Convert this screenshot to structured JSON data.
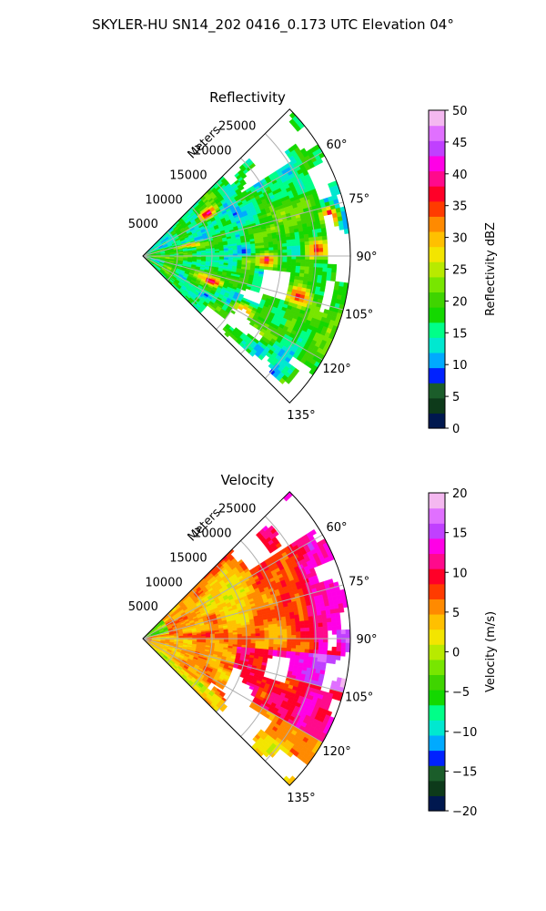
{
  "figure": {
    "title": "SKYLER-HU  SN14_202  0416_0.173 UTC Elevation 04°"
  },
  "chart_data": [
    {
      "type": "heatmap",
      "projection": "polar-sector",
      "title": "Reflectivity",
      "radial_label": "Meters",
      "radial_ticks": [
        "5000",
        "10000",
        "15000",
        "20000",
        "25000"
      ],
      "radial_values": [
        5000,
        10000,
        15000,
        20000,
        25000
      ],
      "rlim": [
        0,
        30000
      ],
      "angle_ticks": [
        "60°",
        "75°",
        "90°",
        "105°",
        "120°",
        "135°"
      ],
      "angle_values": [
        60,
        75,
        90,
        105,
        120,
        135
      ],
      "theta_range_deg": [
        45,
        135
      ],
      "grid": true,
      "colorbar": {
        "label": "Reflectivity dBZ",
        "ticks": [
          "0",
          "5",
          "10",
          "15",
          "20",
          "25",
          "30",
          "35",
          "40",
          "45",
          "50"
        ],
        "range": [
          0,
          50
        ],
        "colors": [
          "#00184f",
          "#0d3a1a",
          "#1b5d2a",
          "#0022ff",
          "#00aaff",
          "#00e8d0",
          "#00ff88",
          "#14d800",
          "#3fd400",
          "#78e600",
          "#b8ea00",
          "#f3e500",
          "#ffc000",
          "#ff8a00",
          "#ff3b00",
          "#ff0028",
          "#ff0a8c",
          "#ff00e6",
          "#c040ff",
          "#e070ff",
          "#f4b8f0"
        ]
      },
      "field_summary": "Mostly green and yellow echoes (15-30 dBZ) with scattered red and magenta cells (35-45 dBZ); data gap around azimuth 90-100° near 18000 m"
    },
    {
      "type": "heatmap",
      "projection": "polar-sector",
      "title": "Velocity",
      "radial_label": "Meters",
      "radial_ticks": [
        "5000",
        "10000",
        "15000",
        "20000",
        "25000"
      ],
      "radial_values": [
        5000,
        10000,
        15000,
        20000,
        25000
      ],
      "rlim": [
        0,
        30000
      ],
      "angle_ticks": [
        "60°",
        "75°",
        "90°",
        "105°",
        "120°",
        "135°"
      ],
      "angle_values": [
        60,
        75,
        90,
        105,
        120,
        135
      ],
      "theta_range_deg": [
        45,
        135
      ],
      "grid": true,
      "colorbar": {
        "label": "Velocity (m/s)",
        "ticks": [
          "−20",
          "−15",
          "−10",
          "−5",
          "0",
          "5",
          "10",
          "15",
          "20"
        ],
        "range": [
          -20,
          20
        ],
        "colors": [
          "#00184f",
          "#0d3a1a",
          "#1b5d2a",
          "#0022ff",
          "#00aaff",
          "#00e8d0",
          "#00ff88",
          "#14d800",
          "#3fd400",
          "#78e600",
          "#b8ea00",
          "#f3e500",
          "#ffc000",
          "#ff8a00",
          "#ff3b00",
          "#ff0028",
          "#ff0a8c",
          "#ff00e6",
          "#c040ff",
          "#e070ff",
          "#f4b8f0"
        ]
      },
      "field_summary": "Predominantly 5-12 m/s (orange-red) near the radar, 12-16 m/s (magenta/purple) bands at longer range, a few negative values near the edge"
    }
  ]
}
